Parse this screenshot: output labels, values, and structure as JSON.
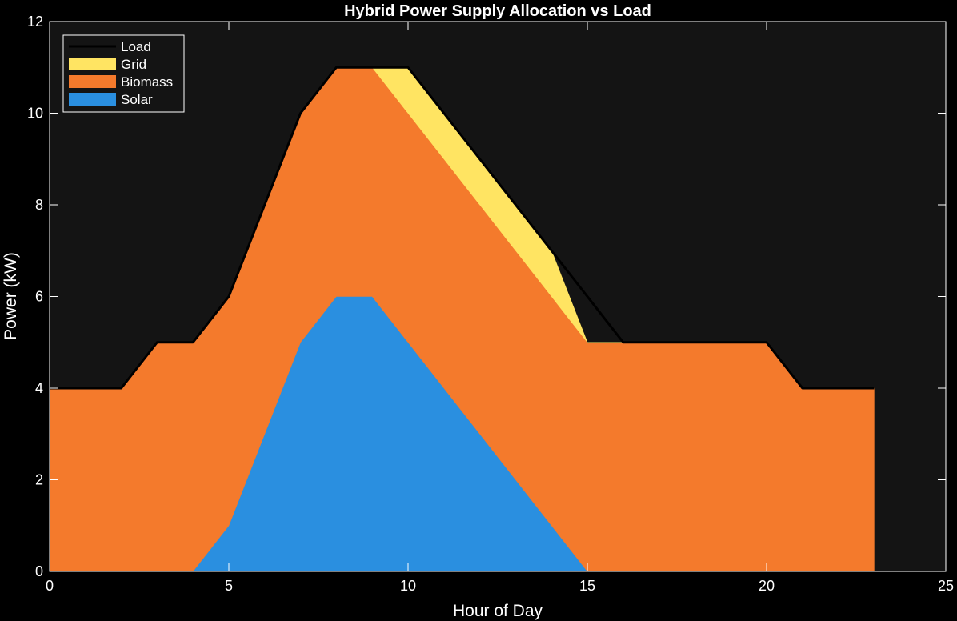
{
  "chart_data": {
    "type": "area",
    "title": "Hybrid Power Supply Allocation vs Load",
    "xlabel": "Hour of Day",
    "ylabel": "Power (kW)",
    "xlim": [
      0,
      25
    ],
    "ylim": [
      0,
      12
    ],
    "xticks": [
      0,
      5,
      10,
      15,
      20,
      25
    ],
    "yticks": [
      0,
      2,
      4,
      6,
      8,
      10,
      12
    ],
    "grid": false,
    "legend_position": "top-left",
    "x": [
      0,
      1,
      2,
      3,
      4,
      5,
      6,
      7,
      8,
      9,
      10,
      11,
      12,
      13,
      14,
      15,
      16,
      17,
      18,
      19,
      20,
      21,
      22,
      23
    ],
    "stacked_areas": [
      {
        "name": "Solar",
        "color": "#2a8fe0",
        "values": [
          0,
          0,
          0,
          0,
          0,
          1,
          3,
          5,
          6,
          6,
          5,
          4,
          3,
          2,
          1,
          0,
          0,
          0,
          0,
          0,
          0,
          0,
          0,
          0
        ]
      },
      {
        "name": "Biomass",
        "color": "#f47a2c",
        "values": [
          4,
          4,
          4,
          5,
          5,
          5,
          5,
          5,
          5,
          5,
          5,
          5,
          5,
          5,
          5,
          5,
          5,
          5,
          5,
          5,
          5,
          4,
          4,
          4
        ]
      },
      {
        "name": "Grid",
        "color": "#ffe462",
        "values": [
          0,
          0,
          0,
          0,
          0,
          0,
          0,
          0,
          0,
          0,
          1,
          1,
          1,
          1,
          1,
          0,
          0,
          0,
          0,
          0,
          0,
          0,
          0,
          0
        ]
      }
    ],
    "line_series": [
      {
        "name": "Load",
        "color": "#000000",
        "values": [
          4,
          4,
          4,
          5,
          5,
          6,
          8,
          10,
          11,
          11,
          11,
          10,
          9,
          8,
          7,
          6,
          5,
          5,
          5,
          5,
          5,
          4,
          4,
          4
        ]
      }
    ],
    "legend_entries": [
      {
        "name": "Load",
        "color": "#000000",
        "kind": "line"
      },
      {
        "name": "Grid",
        "color": "#ffe462",
        "kind": "patch"
      },
      {
        "name": "Biomass",
        "color": "#f47a2c",
        "kind": "patch"
      },
      {
        "name": "Solar",
        "color": "#2a8fe0",
        "kind": "patch"
      }
    ]
  },
  "colors": {
    "background": "#000000",
    "plot_background": "#141414",
    "axes": "#ffffff"
  }
}
